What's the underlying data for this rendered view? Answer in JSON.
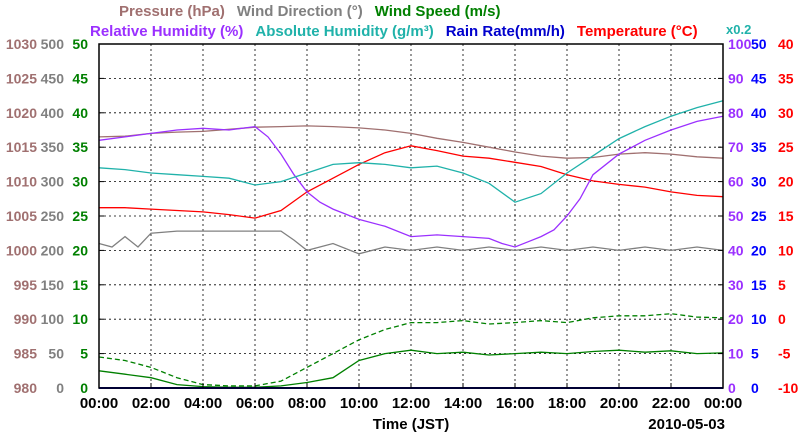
{
  "chart_data": {
    "type": "line",
    "date_label": "2010-05-03",
    "xlabel": "Time (JST)",
    "x_ticks": [
      "00:00",
      "02:00",
      "04:00",
      "06:00",
      "08:00",
      "10:00",
      "12:00",
      "14:00",
      "16:00",
      "18:00",
      "20:00",
      "22:00",
      "00:00"
    ],
    "xlim_hours": [
      0,
      24
    ],
    "grid": true,
    "scale_note": "x0.2",
    "colors": {
      "pressure": "#a07070",
      "wind_direction": "#808080",
      "wind_speed": "#008000",
      "relative_humidity": "#9b30ff",
      "absolute_humidity": "#20b2aa",
      "rain_rate": "#0000cd",
      "temperature": "#ff0000",
      "axis_left_wind_dir": "#808080",
      "axis_left_wind_speed": "#008000",
      "axis_right_humidity": "#9b30ff",
      "axis_right_rain": "#0000ff",
      "axis_right_temp": "#ff0000",
      "axis_right_blue_scale": "#0000ff"
    },
    "legend": {
      "row1": [
        {
          "key": "pressure",
          "label": "Pressure (hPa)"
        },
        {
          "key": "wind_direction",
          "label": "Wind Direction (°)"
        },
        {
          "key": "wind_speed",
          "label": "Wind Speed (m/s)"
        }
      ],
      "row2": [
        {
          "key": "relative_humidity",
          "label": "Relative Humidity (%)"
        },
        {
          "key": "absolute_humidity",
          "label": "Absolute Humidity (g/m³)"
        },
        {
          "key": "rain_rate",
          "label": "Rain Rate(mm/h)"
        },
        {
          "key": "temperature",
          "label": "Temperature (°C)"
        }
      ]
    },
    "axes": {
      "pressure": {
        "ylim": [
          980,
          1030
        ],
        "ticks": [
          "980",
          "985",
          "990",
          "995",
          "1000",
          "1005",
          "1010",
          "1015",
          "1020",
          "1025",
          "1030"
        ]
      },
      "wind_direction": {
        "ylim": [
          0,
          500
        ],
        "ticks": [
          "0",
          "50",
          "100",
          "150",
          "200",
          "250",
          "300",
          "350",
          "400",
          "450",
          "500"
        ]
      },
      "wind_speed": {
        "ylim": [
          0,
          50
        ],
        "ticks": [
          "0",
          "5",
          "10",
          "15",
          "20",
          "25",
          "30",
          "35",
          "40",
          "45",
          "50"
        ]
      },
      "relative_humidity": {
        "ylim": [
          0,
          100
        ],
        "ticks": [
          "0",
          "10",
          "20",
          "30",
          "40",
          "50",
          "60",
          "70",
          "80",
          "90",
          "100"
        ]
      },
      "rain_rate": {
        "ylim": [
          0,
          50
        ],
        "ticks": [
          "0",
          "5",
          "10",
          "15",
          "20",
          "25",
          "30",
          "35",
          "40",
          "45",
          "50"
        ]
      },
      "temperature": {
        "ylim": [
          -10,
          40
        ],
        "ticks": [
          "-10",
          "-5",
          "0",
          "5",
          "10",
          "15",
          "20",
          "25",
          "30",
          "35",
          "40"
        ]
      }
    },
    "series": [
      {
        "key": "pressure",
        "name": "Pressure (hPa)",
        "x": [
          0,
          1,
          2,
          3,
          4,
          5,
          6,
          7,
          8,
          9,
          10,
          11,
          12,
          13,
          14,
          15,
          16,
          17,
          18,
          19,
          20,
          21,
          22,
          23,
          24
        ],
        "y": [
          1016.5,
          1016.6,
          1017,
          1017.2,
          1017.3,
          1017.6,
          1017.9,
          1018,
          1018.1,
          1018,
          1017.8,
          1017.5,
          1017,
          1016.3,
          1015.7,
          1015,
          1014.3,
          1013.7,
          1013.4,
          1013.5,
          1014,
          1014.2,
          1014,
          1013.6,
          1013.4
        ]
      },
      {
        "key": "temperature",
        "name": "Temperature (°C)",
        "x": [
          0,
          1,
          2,
          3,
          4,
          5,
          6,
          7,
          8,
          9,
          10,
          11,
          12,
          13,
          14,
          15,
          16,
          17,
          18,
          19,
          20,
          21,
          22,
          23,
          24
        ],
        "y": [
          16.2,
          16.2,
          16,
          15.8,
          15.6,
          15.2,
          14.7,
          15.8,
          18.5,
          20.5,
          22.5,
          24.2,
          25.2,
          24.5,
          23.7,
          23.4,
          22.8,
          22.2,
          21,
          20.1,
          19.6,
          19.2,
          18.5,
          18,
          17.8
        ]
      },
      {
        "key": "relative_humidity",
        "name": "Relative Humidity (%)",
        "x": [
          0,
          1,
          2,
          3,
          4,
          5,
          6,
          6.5,
          7,
          7.5,
          8,
          8.5,
          9,
          10,
          11,
          12,
          13,
          14,
          15,
          15.5,
          16,
          16.5,
          17,
          17.5,
          18,
          18.5,
          19,
          20,
          21,
          22,
          23,
          24
        ],
        "y": [
          72,
          73,
          74,
          75,
          75.5,
          75,
          76,
          73,
          68,
          62,
          57,
          54,
          52,
          49,
          47,
          44,
          44.5,
          44,
          43.5,
          42,
          41,
          42.5,
          44,
          46,
          50,
          55,
          62,
          68,
          72,
          75,
          77.5,
          79
        ]
      },
      {
        "key": "absolute_humidity",
        "name": "Absolute Humidity (g/m³)",
        "x": [
          0,
          1,
          2,
          3,
          4,
          5,
          6,
          7,
          8,
          9,
          10,
          11,
          12,
          13,
          14,
          15,
          16,
          17,
          18,
          19,
          20,
          21,
          22,
          23,
          24
        ],
        "y": [
          12.8,
          12.7,
          12.5,
          12.4,
          12.3,
          12.2,
          11.8,
          12,
          12.5,
          13,
          13.1,
          13,
          12.8,
          12.9,
          12.5,
          11.9,
          10.8,
          11.3,
          12.5,
          13.5,
          14.5,
          15.2,
          15.8,
          16.3,
          16.7
        ]
      },
      {
        "key": "wind_direction",
        "name": "Wind Direction (°)",
        "x": [
          0,
          0.5,
          1,
          1.5,
          2,
          3,
          4,
          5,
          6,
          7,
          7.5,
          8,
          9,
          10,
          11,
          12,
          13,
          14,
          15,
          16,
          17,
          18,
          19,
          20,
          21,
          22,
          23,
          24
        ],
        "y": [
          210,
          205,
          220,
          205,
          225,
          228,
          228,
          228,
          228,
          228,
          215,
          200,
          210,
          195,
          205,
          200,
          205,
          200,
          205,
          200,
          205,
          200,
          205,
          200,
          205,
          200,
          205,
          200
        ]
      },
      {
        "key": "wind_speed",
        "name": "Wind Speed (m/s)",
        "x": [
          0,
          1,
          2,
          3,
          4,
          5,
          6,
          7,
          8,
          9,
          10,
          11,
          12,
          13,
          14,
          15,
          16,
          17,
          18,
          19,
          20,
          21,
          22,
          23,
          24
        ],
        "y": [
          2.5,
          2,
          1.5,
          0.5,
          0.2,
          0.1,
          0.1,
          0.3,
          0.8,
          1.5,
          4,
          5,
          5.5,
          5,
          5.2,
          4.8,
          5,
          5.2,
          5,
          5.3,
          5.5,
          5.2,
          5.4,
          5,
          5.1
        ]
      },
      {
        "key": "wind_speed_gust",
        "name": "",
        "x": [
          0,
          1,
          2,
          3,
          4,
          5,
          6,
          7,
          8,
          9,
          10,
          11,
          12,
          13,
          14,
          15,
          16,
          17,
          18,
          19,
          20,
          21,
          22,
          23,
          24
        ],
        "y": [
          4.5,
          4,
          3,
          1.5,
          0.5,
          0.3,
          0.3,
          1,
          3,
          5,
          7,
          8.5,
          9.5,
          9.5,
          9.8,
          9.3,
          9.5,
          9.8,
          9.5,
          10.2,
          10.5,
          10.5,
          10.8,
          10.3,
          10.2
        ]
      },
      {
        "key": "rain_rate",
        "name": "Rain Rate(mm/h)",
        "x": [
          0,
          24
        ],
        "y": [
          0,
          0
        ]
      }
    ]
  }
}
